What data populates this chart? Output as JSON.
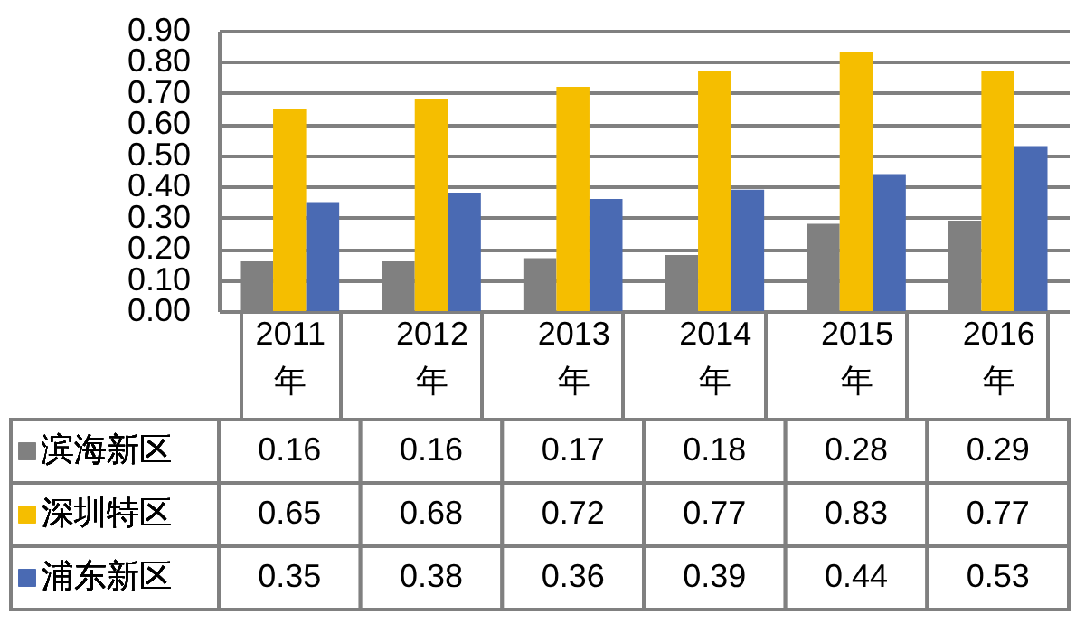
{
  "chart_data": {
    "type": "bar",
    "categories": [
      "2011年",
      "2012年",
      "2013年",
      "2014年",
      "2015年",
      "2016年"
    ],
    "series": [
      {
        "name": "滨海新区",
        "color": "#808080",
        "values": [
          0.16,
          0.16,
          0.17,
          0.18,
          0.28,
          0.29
        ],
        "value_labels": [
          "0.16",
          "0.16",
          "0.17",
          "0.18",
          "0.28",
          "0.29"
        ]
      },
      {
        "name": "深圳特区",
        "color": "#f5be00",
        "values": [
          0.65,
          0.68,
          0.72,
          0.77,
          0.83,
          0.77
        ],
        "value_labels": [
          "0.65",
          "0.68",
          "0.72",
          "0.77",
          "0.83",
          "0.77"
        ]
      },
      {
        "name": "浦东新区",
        "color": "#4a6ab3",
        "values": [
          0.35,
          0.38,
          0.36,
          0.39,
          0.44,
          0.53
        ],
        "value_labels": [
          "0.35",
          "0.38",
          "0.36",
          "0.39",
          "0.44",
          "0.53"
        ]
      }
    ],
    "ylim": [
      0,
      0.9
    ],
    "yticks": [
      {
        "value": 0,
        "label": "0.00"
      },
      {
        "value": 0.1,
        "label": "0.10"
      },
      {
        "value": 0.2,
        "label": "0.20"
      },
      {
        "value": 0.3,
        "label": "0.30"
      },
      {
        "value": 0.4,
        "label": "0.40"
      },
      {
        "value": 0.5,
        "label": "0.50"
      },
      {
        "value": 0.6,
        "label": "0.60"
      },
      {
        "value": 0.7,
        "label": "0.70"
      },
      {
        "value": 0.8,
        "label": "0.80"
      },
      {
        "value": 0.9,
        "label": "0.90"
      }
    ],
    "grid": "y",
    "legend": "bottom left"
  }
}
